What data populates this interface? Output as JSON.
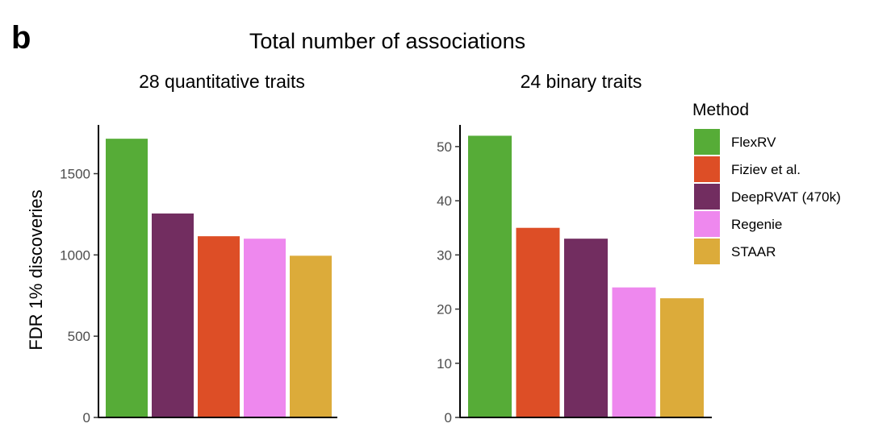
{
  "figure": {
    "panel_letter": "b",
    "title": "Total number of associations"
  },
  "chart_data": [
    {
      "type": "bar",
      "title": "28 quantitative traits",
      "xlabel": "",
      "ylabel": "FDR 1% discoveries",
      "ylim": [
        0,
        1800
      ],
      "yticks": [
        0,
        500,
        1000,
        1500
      ],
      "grid": false,
      "categories": [
        "FlexRV",
        "DeepRVAT (470k)",
        "Fiziev et al.",
        "Regenie",
        "STAAR"
      ],
      "values": [
        1715,
        1255,
        1115,
        1100,
        995
      ]
    },
    {
      "type": "bar",
      "title": "24 binary traits",
      "xlabel": "",
      "ylabel": "",
      "ylim": [
        0,
        54
      ],
      "yticks": [
        0,
        10,
        20,
        30,
        40,
        50
      ],
      "grid": false,
      "categories": [
        "FlexRV",
        "Fiziev et al.",
        "DeepRVAT (470k)",
        "Regenie",
        "STAAR"
      ],
      "values": [
        52,
        35,
        33,
        24,
        22
      ]
    }
  ],
  "legend": {
    "title": "Method",
    "position": "right",
    "items": [
      {
        "label": "FlexRV",
        "color": "#56ac37"
      },
      {
        "label": "Fiziev et al.",
        "color": "#dd4e26"
      },
      {
        "label": "DeepRVAT (470k)",
        "color": "#722d60"
      },
      {
        "label": "Regenie",
        "color": "#ee88ee"
      },
      {
        "label": "STAAR",
        "color": "#dcab3a"
      }
    ]
  }
}
